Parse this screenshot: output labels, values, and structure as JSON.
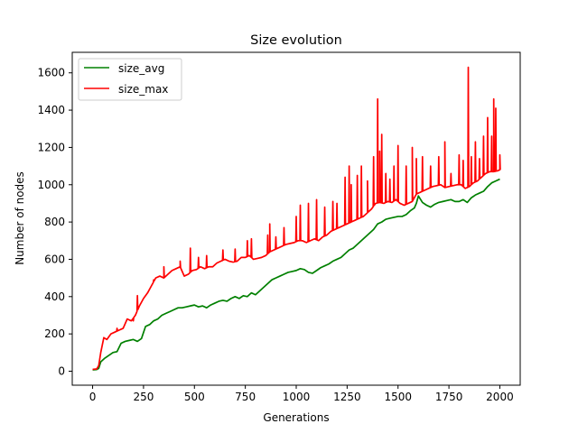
{
  "chart_data": {
    "type": "line",
    "title": "Size evolution",
    "xlabel": "Generations",
    "ylabel": "Number of nodes",
    "xlim": [
      -100,
      2100
    ],
    "ylim": [
      -75,
      1710
    ],
    "xticks": [
      0,
      250,
      500,
      750,
      1000,
      1250,
      1500,
      1750,
      2000
    ],
    "yticks": [
      0,
      200,
      400,
      600,
      800,
      1000,
      1200,
      1400,
      1600
    ],
    "grid": false,
    "legend_position": "top-left",
    "series": [
      {
        "name": "size_avg",
        "color": "#008000",
        "points": [
          [
            0,
            7
          ],
          [
            20,
            9
          ],
          [
            30,
            15
          ],
          [
            40,
            50
          ],
          [
            60,
            70
          ],
          [
            80,
            85
          ],
          [
            100,
            100
          ],
          [
            120,
            105
          ],
          [
            140,
            150
          ],
          [
            160,
            160
          ],
          [
            180,
            165
          ],
          [
            200,
            170
          ],
          [
            220,
            160
          ],
          [
            240,
            175
          ],
          [
            260,
            240
          ],
          [
            280,
            250
          ],
          [
            300,
            270
          ],
          [
            320,
            280
          ],
          [
            340,
            300
          ],
          [
            360,
            310
          ],
          [
            380,
            320
          ],
          [
            400,
            330
          ],
          [
            420,
            340
          ],
          [
            440,
            340
          ],
          [
            460,
            345
          ],
          [
            480,
            350
          ],
          [
            500,
            355
          ],
          [
            520,
            345
          ],
          [
            540,
            350
          ],
          [
            560,
            340
          ],
          [
            580,
            355
          ],
          [
            600,
            365
          ],
          [
            620,
            375
          ],
          [
            640,
            380
          ],
          [
            660,
            375
          ],
          [
            680,
            390
          ],
          [
            700,
            400
          ],
          [
            720,
            390
          ],
          [
            740,
            405
          ],
          [
            760,
            400
          ],
          [
            780,
            420
          ],
          [
            800,
            410
          ],
          [
            820,
            430
          ],
          [
            840,
            450
          ],
          [
            860,
            470
          ],
          [
            880,
            490
          ],
          [
            900,
            500
          ],
          [
            920,
            510
          ],
          [
            940,
            520
          ],
          [
            960,
            530
          ],
          [
            980,
            535
          ],
          [
            1000,
            540
          ],
          [
            1020,
            550
          ],
          [
            1040,
            545
          ],
          [
            1060,
            530
          ],
          [
            1080,
            525
          ],
          [
            1100,
            540
          ],
          [
            1120,
            555
          ],
          [
            1140,
            565
          ],
          [
            1160,
            575
          ],
          [
            1180,
            590
          ],
          [
            1200,
            600
          ],
          [
            1220,
            610
          ],
          [
            1240,
            630
          ],
          [
            1260,
            650
          ],
          [
            1280,
            660
          ],
          [
            1300,
            680
          ],
          [
            1320,
            700
          ],
          [
            1340,
            720
          ],
          [
            1360,
            740
          ],
          [
            1380,
            760
          ],
          [
            1400,
            790
          ],
          [
            1420,
            800
          ],
          [
            1440,
            815
          ],
          [
            1460,
            820
          ],
          [
            1480,
            825
          ],
          [
            1500,
            830
          ],
          [
            1520,
            830
          ],
          [
            1540,
            840
          ],
          [
            1560,
            860
          ],
          [
            1580,
            875
          ],
          [
            1590,
            900
          ],
          [
            1600,
            940
          ],
          [
            1620,
            905
          ],
          [
            1640,
            890
          ],
          [
            1660,
            880
          ],
          [
            1680,
            895
          ],
          [
            1700,
            905
          ],
          [
            1720,
            910
          ],
          [
            1740,
            915
          ],
          [
            1760,
            920
          ],
          [
            1780,
            910
          ],
          [
            1800,
            910
          ],
          [
            1820,
            920
          ],
          [
            1840,
            905
          ],
          [
            1860,
            930
          ],
          [
            1880,
            945
          ],
          [
            1900,
            955
          ],
          [
            1920,
            965
          ],
          [
            1940,
            990
          ],
          [
            1960,
            1010
          ],
          [
            1980,
            1020
          ],
          [
            2000,
            1030
          ]
        ]
      },
      {
        "name": "size_max",
        "color": "#ff0000",
        "points": [
          [
            0,
            10
          ],
          [
            20,
            12
          ],
          [
            30,
            30
          ],
          [
            40,
            100
          ],
          [
            55,
            180
          ],
          [
            70,
            170
          ],
          [
            90,
            200
          ],
          [
            110,
            210
          ],
          [
            130,
            220
          ],
          [
            150,
            230
          ],
          [
            170,
            280
          ],
          [
            190,
            270
          ],
          [
            210,
            300
          ],
          [
            230,
            350
          ],
          [
            250,
            390
          ],
          [
            270,
            420
          ],
          [
            290,
            460
          ],
          [
            310,
            500
          ],
          [
            330,
            510
          ],
          [
            350,
            500
          ],
          [
            370,
            520
          ],
          [
            390,
            540
          ],
          [
            410,
            550
          ],
          [
            430,
            560
          ],
          [
            450,
            510
          ],
          [
            470,
            520
          ],
          [
            490,
            540
          ],
          [
            510,
            545
          ],
          [
            530,
            560
          ],
          [
            550,
            550
          ],
          [
            570,
            560
          ],
          [
            590,
            560
          ],
          [
            610,
            580
          ],
          [
            630,
            590
          ],
          [
            650,
            600
          ],
          [
            670,
            590
          ],
          [
            690,
            585
          ],
          [
            710,
            590
          ],
          [
            730,
            610
          ],
          [
            750,
            610
          ],
          [
            770,
            620
          ],
          [
            790,
            600
          ],
          [
            810,
            605
          ],
          [
            830,
            610
          ],
          [
            850,
            620
          ],
          [
            870,
            640
          ],
          [
            890,
            650
          ],
          [
            910,
            660
          ],
          [
            930,
            670
          ],
          [
            950,
            680
          ],
          [
            970,
            685
          ],
          [
            990,
            690
          ],
          [
            1010,
            700
          ],
          [
            1030,
            700
          ],
          [
            1050,
            690
          ],
          [
            1070,
            700
          ],
          [
            1090,
            710
          ],
          [
            1110,
            700
          ],
          [
            1130,
            720
          ],
          [
            1150,
            730
          ],
          [
            1170,
            750
          ],
          [
            1190,
            760
          ],
          [
            1210,
            770
          ],
          [
            1230,
            780
          ],
          [
            1250,
            790
          ],
          [
            1270,
            800
          ],
          [
            1290,
            810
          ],
          [
            1310,
            820
          ],
          [
            1330,
            830
          ],
          [
            1350,
            850
          ],
          [
            1370,
            870
          ],
          [
            1390,
            900
          ],
          [
            1410,
            905
          ],
          [
            1430,
            900
          ],
          [
            1450,
            910
          ],
          [
            1470,
            905
          ],
          [
            1490,
            920
          ],
          [
            1510,
            900
          ],
          [
            1530,
            890
          ],
          [
            1550,
            900
          ],
          [
            1570,
            910
          ],
          [
            1590,
            950
          ],
          [
            1610,
            960
          ],
          [
            1630,
            970
          ],
          [
            1650,
            980
          ],
          [
            1670,
            990
          ],
          [
            1690,
            995
          ],
          [
            1710,
            1000
          ],
          [
            1730,
            985
          ],
          [
            1750,
            990
          ],
          [
            1770,
            995
          ],
          [
            1790,
            1000
          ],
          [
            1810,
            1000
          ],
          [
            1830,
            980
          ],
          [
            1850,
            990
          ],
          [
            1870,
            1010
          ],
          [
            1890,
            1020
          ],
          [
            1910,
            1040
          ],
          [
            1930,
            1060
          ],
          [
            1950,
            1070
          ],
          [
            1970,
            1070
          ],
          [
            1990,
            1075
          ],
          [
            2000,
            1080
          ]
        ],
        "spikes": [
          [
            120,
            230
          ],
          [
            200,
            270
          ],
          [
            220,
            405
          ],
          [
            300,
            490
          ],
          [
            350,
            560
          ],
          [
            430,
            590
          ],
          [
            480,
            660
          ],
          [
            520,
            610
          ],
          [
            560,
            620
          ],
          [
            640,
            650
          ],
          [
            700,
            655
          ],
          [
            760,
            700
          ],
          [
            780,
            710
          ],
          [
            860,
            730
          ],
          [
            870,
            790
          ],
          [
            900,
            720
          ],
          [
            940,
            770
          ],
          [
            1000,
            830
          ],
          [
            1020,
            890
          ],
          [
            1060,
            900
          ],
          [
            1100,
            920
          ],
          [
            1140,
            880
          ],
          [
            1180,
            910
          ],
          [
            1200,
            900
          ],
          [
            1240,
            1040
          ],
          [
            1260,
            1100
          ],
          [
            1270,
            1000
          ],
          [
            1300,
            1050
          ],
          [
            1320,
            1100
          ],
          [
            1350,
            1020
          ],
          [
            1380,
            1150
          ],
          [
            1400,
            1460
          ],
          [
            1410,
            1180
          ],
          [
            1420,
            1270
          ],
          [
            1440,
            1060
          ],
          [
            1460,
            1030
          ],
          [
            1480,
            1100
          ],
          [
            1500,
            1210
          ],
          [
            1540,
            1100
          ],
          [
            1570,
            1200
          ],
          [
            1590,
            1140
          ],
          [
            1620,
            1150
          ],
          [
            1660,
            1100
          ],
          [
            1700,
            1150
          ],
          [
            1730,
            1230
          ],
          [
            1760,
            1060
          ],
          [
            1800,
            1160
          ],
          [
            1820,
            1130
          ],
          [
            1845,
            1630
          ],
          [
            1860,
            1150
          ],
          [
            1880,
            1230
          ],
          [
            1900,
            1140
          ],
          [
            1920,
            1260
          ],
          [
            1940,
            1360
          ],
          [
            1960,
            1260
          ],
          [
            1970,
            1460
          ],
          [
            1980,
            1410
          ],
          [
            2000,
            1160
          ]
        ]
      }
    ]
  }
}
